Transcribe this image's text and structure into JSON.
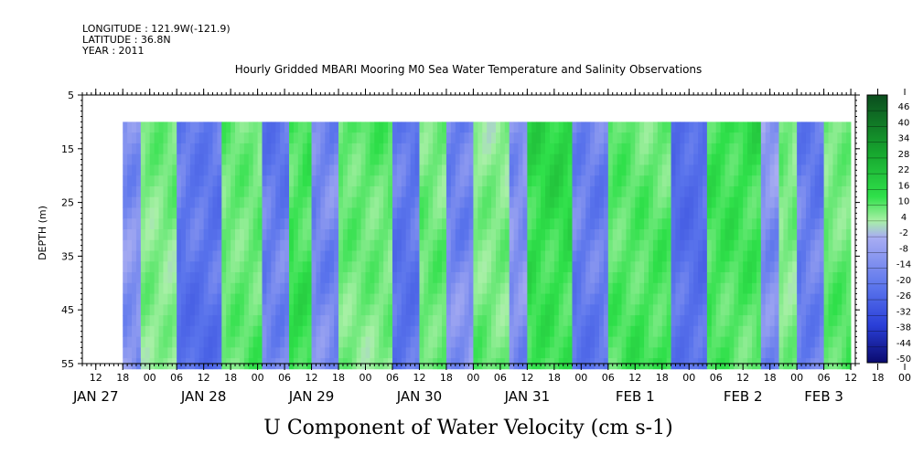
{
  "header": {
    "longitude": "LONGITUDE : 121.9W(-121.9)",
    "latitude": "LATITUDE : 36.8N",
    "year": "YEAR : 2011"
  },
  "chart_data": {
    "type": "heatmap",
    "title": "Hourly Gridded MBARI Mooring M0 Sea Water Temperature and Salinity Observations",
    "xlabel": "U Component of Water Velocity (cm s-1)",
    "ylabel": "DEPTH (m)",
    "ylim": [
      5,
      55
    ],
    "y_reversed": true,
    "y_ticks": [
      5,
      15,
      25,
      35,
      45,
      55
    ],
    "data_depth_range": [
      10,
      55
    ],
    "xlim": [
      "2011-01-27 09:00",
      "2011-02-03 13:00"
    ],
    "data_time_range": [
      "2011-01-27 18:00",
      "2011-02-03 12:00"
    ],
    "x_hour_labels": [
      "12",
      "18",
      "00",
      "06",
      "12",
      "18",
      "00",
      "06",
      "12",
      "18",
      "00",
      "06",
      "12",
      "18",
      "00",
      "06",
      "12",
      "18",
      "00",
      "06",
      "12",
      "18",
      "00",
      "06",
      "12",
      "18",
      "00",
      "06",
      "12",
      "18",
      "00",
      "06",
      "12"
    ],
    "x_date_labels": [
      {
        "label": "JAN 27",
        "hour": 12
      },
      {
        "label": "JAN 28",
        "hour": 36
      },
      {
        "label": "JAN 29",
        "hour": 60
      },
      {
        "label": "JAN 30",
        "hour": 84
      },
      {
        "label": "JAN 31",
        "hour": 108
      },
      {
        "label": "FEB  1",
        "hour": 132
      },
      {
        "label": "FEB  2",
        "hour": 156
      },
      {
        "label": "FEB  3",
        "hour": 174
      }
    ],
    "grid": false,
    "colorbar": {
      "position": "right",
      "labels": [
        "46",
        "40",
        "34",
        "28",
        "22",
        "16",
        "10",
        "4",
        "-2",
        "-8",
        "-14",
        "-20",
        "-26",
        "-32",
        "-38",
        "-44",
        "-50"
      ],
      "colors": {
        "dark_green": "#0b4d1e",
        "green": "#1fd83a",
        "light_green": "#a8f0a6",
        "light_blue": "#a9aef2",
        "blue": "#3f5ce6",
        "dark_blue": "#0a0a6e"
      }
    },
    "velocity_bands": [
      {
        "start": 18,
        "end": 22,
        "mean": -8
      },
      {
        "start": 22,
        "end": 30,
        "mean": 8
      },
      {
        "start": 30,
        "end": 40,
        "mean": -14
      },
      {
        "start": 40,
        "end": 49,
        "mean": 10
      },
      {
        "start": 49,
        "end": 55,
        "mean": -12
      },
      {
        "start": 55,
        "end": 60,
        "mean": 14
      },
      {
        "start": 60,
        "end": 66,
        "mean": -10
      },
      {
        "start": 66,
        "end": 78,
        "mean": 10
      },
      {
        "start": 78,
        "end": 84,
        "mean": -14
      },
      {
        "start": 84,
        "end": 90,
        "mean": 10
      },
      {
        "start": 90,
        "end": 96,
        "mean": -10
      },
      {
        "start": 96,
        "end": 104,
        "mean": 8
      },
      {
        "start": 104,
        "end": 108,
        "mean": -8
      },
      {
        "start": 108,
        "end": 118,
        "mean": 16
      },
      {
        "start": 118,
        "end": 126,
        "mean": -12
      },
      {
        "start": 126,
        "end": 140,
        "mean": 12
      },
      {
        "start": 140,
        "end": 148,
        "mean": -16
      },
      {
        "start": 148,
        "end": 160,
        "mean": 14
      },
      {
        "start": 160,
        "end": 164,
        "mean": -8
      },
      {
        "start": 164,
        "end": 168,
        "mean": 8
      },
      {
        "start": 168,
        "end": 174,
        "mean": -12
      },
      {
        "start": 174,
        "end": 180,
        "mean": 10
      }
    ]
  }
}
